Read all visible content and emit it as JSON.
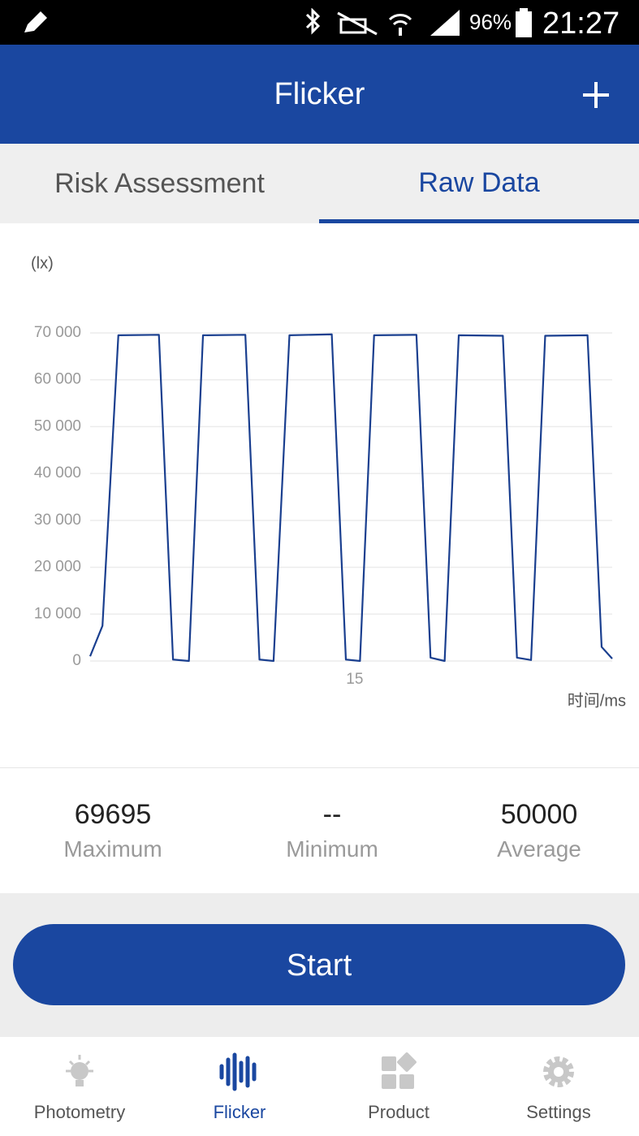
{
  "status_bar": {
    "battery": "96%",
    "time": "21:27"
  },
  "header": {
    "title": "Flicker"
  },
  "tabs": [
    "Risk Assessment",
    "Raw Data"
  ],
  "chart_data": {
    "type": "line",
    "y_label": "(lx)",
    "x_label": "时间/ms",
    "x": [
      0,
      0.7,
      1.6,
      3.9,
      4.7,
      5.6,
      6.4,
      8.8,
      9.6,
      10.4,
      11.3,
      13.7,
      14.5,
      15.3,
      16.1,
      18.5,
      19.3,
      20.1,
      20.9,
      23.4,
      24.2,
      25.0,
      25.8,
      28.2,
      29.0,
      29.6
    ],
    "values": [
      1000,
      7500,
      69500,
      69600,
      300,
      0,
      69500,
      69600,
      300,
      0,
      69500,
      69700,
      300,
      0,
      69500,
      69600,
      700,
      0,
      69500,
      69400,
      700,
      200,
      69400,
      69500,
      3000,
      500
    ],
    "color": "#1a3f8f",
    "xlim": [
      0,
      29.6
    ],
    "xticks": [
      15
    ],
    "ylim": [
      0,
      70000
    ],
    "yticks": [
      0,
      {
        "value": 10000,
        "label": "10 000"
      },
      {
        "value": 20000,
        "label": "20 000"
      },
      {
        "value": 30000,
        "label": "30 000"
      },
      {
        "value": 40000,
        "label": "40 000"
      },
      {
        "value": 50000,
        "label": "50 000"
      },
      {
        "value": 60000,
        "label": "60 000"
      },
      {
        "value": 70000,
        "label": "70 000"
      }
    ],
    "grid": true
  },
  "stats": [
    {
      "value": 69695,
      "name": "Maximum"
    },
    {
      "value": "--",
      "name": "Minimum"
    },
    {
      "value": 50000,
      "name": "Average"
    }
  ],
  "button": "Start",
  "nav": [
    "Photometry",
    "Flicker",
    "Product",
    "Settings"
  ]
}
